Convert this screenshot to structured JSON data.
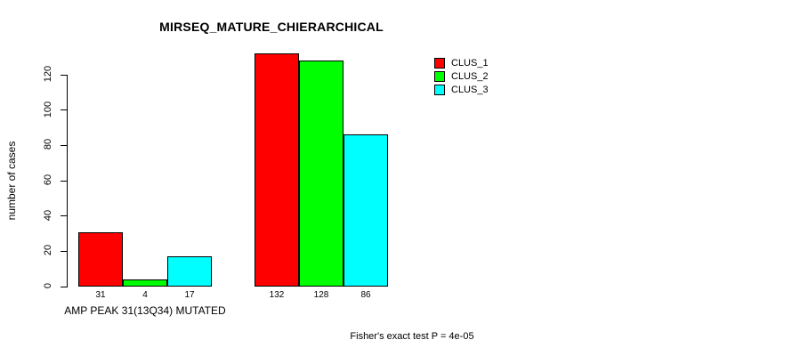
{
  "title": "MIRSEQ_MATURE_CHIERARCHICAL",
  "ylabel": "number of cases",
  "group_label": "AMP PEAK 31(13Q34) MUTATED",
  "footer": "Fisher's exact test P = 4e-05",
  "colors": {
    "clus_1": "#FF0000",
    "clus_2": "#00FF00",
    "clus_3": "#00FFFF",
    "axis": "#000000",
    "background": "#FFFFFF"
  },
  "chart_data": {
    "type": "bar",
    "title": "MIRSEQ_MATURE_CHIERARCHICAL",
    "xlabel": "",
    "ylabel": "number of cases",
    "categories": [
      "AMP PEAK 31(13Q34) MUTATED",
      ""
    ],
    "series": [
      {
        "name": "CLUS_1",
        "color": "#FF0000",
        "values": [
          31,
          132
        ]
      },
      {
        "name": "CLUS_2",
        "color": "#00FF00",
        "values": [
          4,
          128
        ]
      },
      {
        "name": "CLUS_3",
        "color": "#00FFFF",
        "values": [
          17,
          86
        ]
      }
    ],
    "bar_value_labels": [
      [
        31,
        4,
        17
      ],
      [
        132,
        128,
        86
      ]
    ],
    "yticks": [
      0,
      20,
      40,
      60,
      80,
      100,
      120
    ],
    "ylim": [
      0,
      132
    ],
    "grid": false,
    "legend_position": "top-right",
    "legend_entries": [
      "CLUS_1",
      "CLUS_2",
      "CLUS_3"
    ],
    "annotation": "Fisher's exact test P = 4e-05"
  }
}
